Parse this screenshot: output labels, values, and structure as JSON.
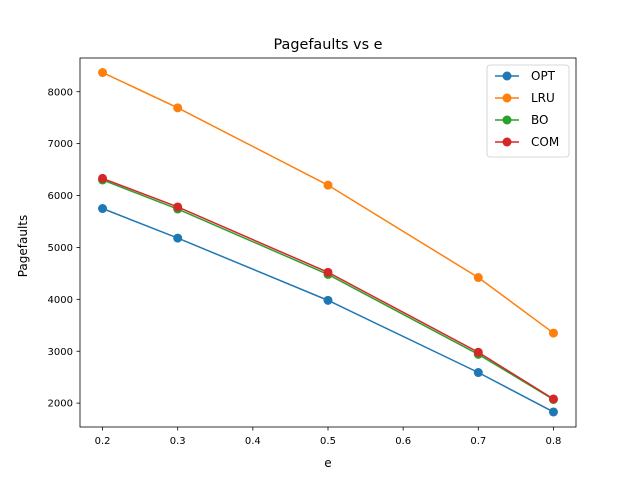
{
  "chart_data": {
    "type": "line",
    "title": "Pagefaults vs e",
    "xlabel": "e",
    "ylabel": "Pagefaults",
    "x": [
      0.2,
      0.3,
      0.5,
      0.7,
      0.8
    ],
    "xlim": [
      0.17,
      0.83
    ],
    "ylim": [
      1540,
      8650
    ],
    "xticks": [
      {
        "value": 0.2,
        "label": "0.2"
      },
      {
        "value": 0.3,
        "label": "0.3"
      },
      {
        "value": 0.4,
        "label": "0.4"
      },
      {
        "value": 0.5,
        "label": "0.5"
      },
      {
        "value": 0.6,
        "label": "0.6"
      },
      {
        "value": 0.7,
        "label": "0.7"
      },
      {
        "value": 0.8,
        "label": "0.8"
      }
    ],
    "yticks": [
      {
        "value": 2000,
        "label": "2000"
      },
      {
        "value": 3000,
        "label": "3000"
      },
      {
        "value": 4000,
        "label": "4000"
      },
      {
        "value": 5000,
        "label": "5000"
      },
      {
        "value": 6000,
        "label": "6000"
      },
      {
        "value": 7000,
        "label": "7000"
      },
      {
        "value": 8000,
        "label": "8000"
      }
    ],
    "grid": false,
    "legend_position": "top-right",
    "series": [
      {
        "name": "OPT",
        "color": "#1f77b4",
        "values": [
          5750,
          5180,
          3980,
          2590,
          1830
        ]
      },
      {
        "name": "LRU",
        "color": "#ff7f0e",
        "values": [
          8370,
          7690,
          6200,
          4420,
          3350
        ]
      },
      {
        "name": "BO",
        "color": "#2ca02c",
        "values": [
          6300,
          5740,
          4480,
          2940,
          2070
        ]
      },
      {
        "name": "COM",
        "color": "#d62728",
        "values": [
          6330,
          5780,
          4520,
          2980,
          2080
        ]
      }
    ]
  }
}
